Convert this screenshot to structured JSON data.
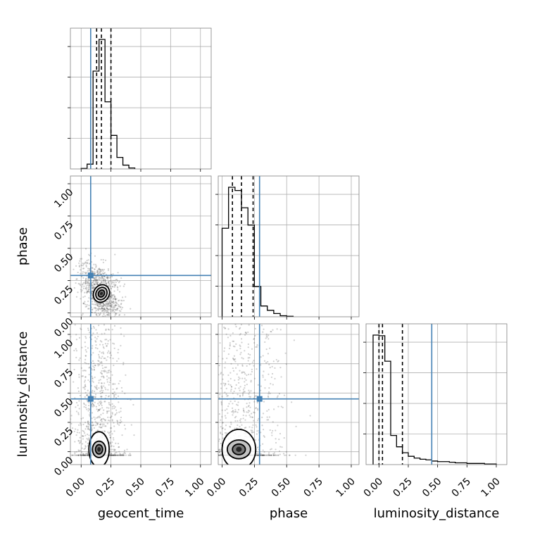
{
  "chart_data": {
    "type": "corner",
    "parameters": [
      "geocent_time",
      "phase",
      "luminosity_distance"
    ],
    "axis_labels": {
      "x": [
        "geocent_time",
        "phase",
        "luminosity_distance"
      ],
      "y": [
        "",
        "phase",
        "luminosity_distance"
      ]
    },
    "tick_values": [
      0.0,
      0.25,
      0.5,
      0.75,
      1.0
    ],
    "tick_labels": [
      "0.00",
      "0.25",
      "0.50",
      "0.75",
      "1.00"
    ],
    "ranges": {
      "geocent_time": [
        -0.09,
        1.09
      ],
      "phase": [
        -0.03,
        1.06
      ],
      "luminosity_distance": [
        -0.11,
        1.09
      ]
    },
    "grid": true,
    "colors": {
      "histogram": "#000000",
      "truth": "#4682b4",
      "quantile": "#000000",
      "scatter": "#555555"
    },
    "truths": {
      "geocent_time": 0.08,
      "phase": 0.29,
      "luminosity_distance": 0.45
    },
    "quantiles": {
      "geocent_time": [
        0.13,
        0.17,
        0.25
      ],
      "phase": [
        0.08,
        0.15,
        0.24
      ],
      "luminosity_distance": [
        0.0,
        0.03,
        0.2
      ]
    },
    "histograms": {
      "geocent_time": {
        "edges": [
          0.0,
          0.05,
          0.1,
          0.15,
          0.2,
          0.25,
          0.3,
          0.35,
          0.4,
          0.45
        ],
        "counts": [
          0.5,
          5,
          102,
          135,
          70,
          35,
          12,
          4,
          1
        ]
      },
      "phase": {
        "edges": [
          0.0,
          0.05,
          0.1,
          0.15,
          0.2,
          0.25,
          0.3,
          0.35,
          0.4,
          0.45,
          0.5,
          0.55
        ],
        "counts": [
          82,
          120,
          117,
          101,
          85,
          28,
          10,
          6,
          3,
          1,
          0.5
        ]
      },
      "luminosity_distance": {
        "edges": [
          -0.05,
          0.0,
          0.05,
          0.1,
          0.15,
          0.2,
          0.25,
          0.3,
          0.35,
          0.4,
          0.45,
          0.5,
          0.55,
          0.6,
          0.65,
          0.7,
          0.75,
          0.8,
          0.85,
          0.9,
          0.95,
          1.0
        ],
        "counts": [
          218,
          217,
          174,
          49,
          30,
          20,
          14,
          11,
          9,
          8,
          6,
          5,
          5,
          4,
          3,
          3,
          2,
          2,
          2,
          1,
          1
        ]
      }
    },
    "contours_2d": {
      "phase_vs_geocent_time": {
        "center": [
          0.17,
          0.15
        ],
        "radii": [
          [
            0.065,
            0.07
          ],
          [
            0.045,
            0.05
          ],
          [
            0.025,
            0.028
          ],
          [
            0.012,
            0.014
          ]
        ]
      },
      "luminosity_distance_vs_geocent_time": {
        "center": [
          0.15,
          0.02
        ],
        "radii": [
          [
            0.085,
            0.15
          ],
          [
            0.055,
            0.07
          ],
          [
            0.03,
            0.04
          ],
          [
            0.015,
            0.02
          ]
        ]
      },
      "luminosity_distance_vs_phase": {
        "center": [
          0.13,
          0.02
        ],
        "radii": [
          [
            0.13,
            0.17
          ],
          [
            0.09,
            0.08
          ],
          [
            0.05,
            0.045
          ],
          [
            0.022,
            0.022
          ]
        ]
      }
    }
  }
}
